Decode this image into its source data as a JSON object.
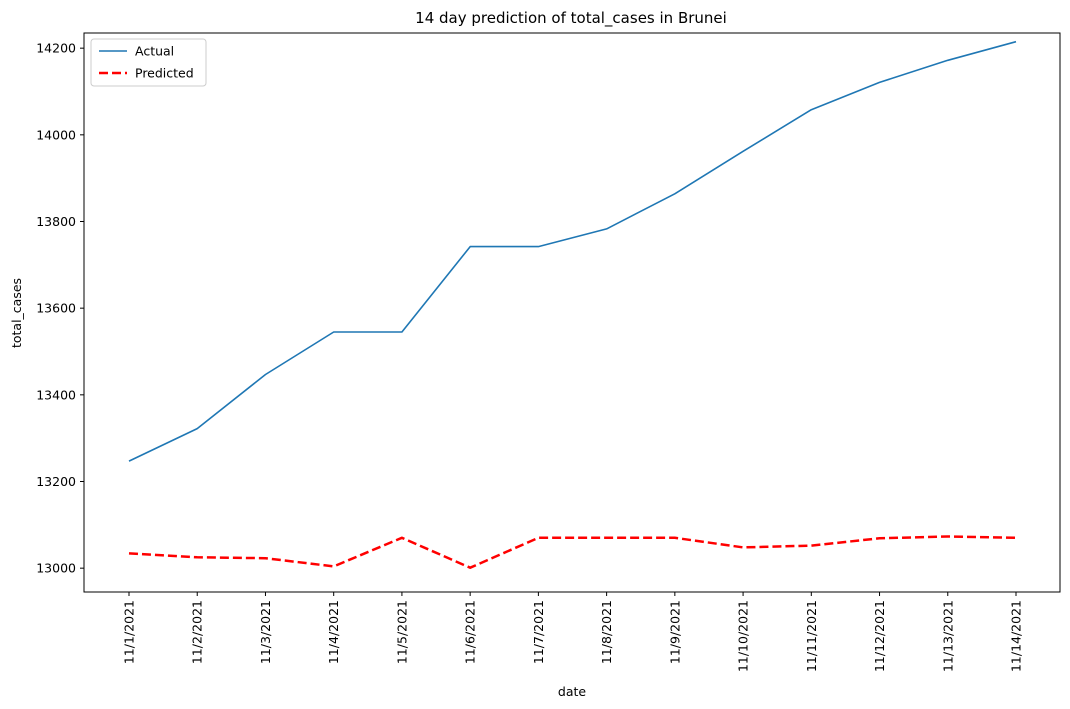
{
  "chart_data": {
    "type": "line",
    "title": "14 day prediction of total_cases in Brunei",
    "xlabel": "date",
    "ylabel": "total_cases",
    "categories": [
      "11/1/2021",
      "11/2/2021",
      "11/3/2021",
      "11/4/2021",
      "11/5/2021",
      "11/6/2021",
      "11/7/2021",
      "11/8/2021",
      "11/9/2021",
      "11/10/2021",
      "11/11/2021",
      "11/12/2021",
      "11/13/2021",
      "11/14/2021"
    ],
    "ylim": [
      12945,
      14235
    ],
    "yticks": [
      13000,
      13200,
      13400,
      13600,
      13800,
      14000,
      14200
    ],
    "grid": false,
    "legend_position": "top-left",
    "series": [
      {
        "name": "Actual",
        "color": "#1f77b4",
        "style": "solid",
        "values": [
          13247,
          13322,
          13447,
          13545,
          13545,
          13742,
          13742,
          13783,
          13864,
          13962,
          14058,
          14121,
          14172,
          14215
        ]
      },
      {
        "name": "Predicted",
        "color": "#ff0000",
        "style": "dashed",
        "values": [
          13034,
          13025,
          13023,
          13004,
          13070,
          13001,
          13070,
          13070,
          13070,
          13048,
          13052,
          13069,
          13073,
          13070
        ]
      }
    ]
  }
}
